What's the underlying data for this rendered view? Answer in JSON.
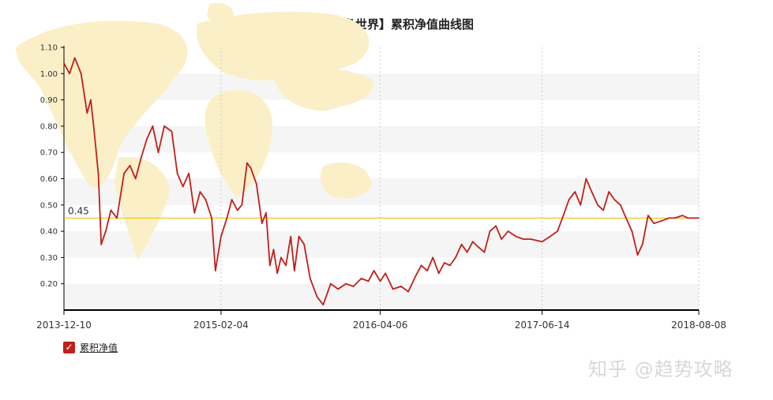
{
  "chart_data": {
    "type": "line",
    "title": "【装备中国装备世界】累积净值曲线图",
    "xlabel": "",
    "ylabel": "",
    "x_ticks": [
      "2013-12-10",
      "2015-02-04",
      "2016-04-06",
      "2017-06-14",
      "2018-08-08"
    ],
    "y_ticks": [
      "0.20",
      "0.30",
      "0.40",
      "0.50",
      "0.60",
      "0.70",
      "0.80",
      "0.90",
      "1.00",
      "1.10"
    ],
    "ylim": [
      0.1,
      1.1
    ],
    "reference_line": {
      "value": 0.45,
      "label": "0.45",
      "color": "#e8c60a"
    },
    "grid": "vertical dotted lines at x ticks, alternating horizontal bands",
    "legend_position": "bottom-left",
    "series": [
      {
        "name": "累积净值",
        "color": "#c0201b",
        "points": [
          [
            "2013-12-10",
            1.04
          ],
          [
            "2013-12-25",
            1.0
          ],
          [
            "2014-01-08",
            1.06
          ],
          [
            "2014-01-25",
            1.0
          ],
          [
            "2014-02-10",
            0.85
          ],
          [
            "2014-02-20",
            0.9
          ],
          [
            "2014-03-01",
            0.78
          ],
          [
            "2014-03-12",
            0.62
          ],
          [
            "2014-03-20",
            0.35
          ],
          [
            "2014-04-01",
            0.4
          ],
          [
            "2014-04-15",
            0.48
          ],
          [
            "2014-05-01",
            0.45
          ],
          [
            "2014-05-20",
            0.62
          ],
          [
            "2014-06-05",
            0.65
          ],
          [
            "2014-06-20",
            0.6
          ],
          [
            "2014-07-05",
            0.68
          ],
          [
            "2014-07-20",
            0.75
          ],
          [
            "2014-08-05",
            0.8
          ],
          [
            "2014-08-20",
            0.7
          ],
          [
            "2014-09-05",
            0.8
          ],
          [
            "2014-09-25",
            0.78
          ],
          [
            "2014-10-10",
            0.62
          ],
          [
            "2014-10-25",
            0.57
          ],
          [
            "2014-11-10",
            0.62
          ],
          [
            "2014-11-25",
            0.47
          ],
          [
            "2014-12-10",
            0.55
          ],
          [
            "2014-12-25",
            0.52
          ],
          [
            "2015-01-10",
            0.45
          ],
          [
            "2015-01-20",
            0.25
          ],
          [
            "2015-02-04",
            0.38
          ],
          [
            "2015-02-20",
            0.45
          ],
          [
            "2015-03-05",
            0.52
          ],
          [
            "2015-03-20",
            0.48
          ],
          [
            "2015-04-01",
            0.5
          ],
          [
            "2015-04-15",
            0.66
          ],
          [
            "2015-04-25",
            0.64
          ],
          [
            "2015-05-10",
            0.58
          ],
          [
            "2015-05-25",
            0.43
          ],
          [
            "2015-06-05",
            0.47
          ],
          [
            "2015-06-15",
            0.27
          ],
          [
            "2015-06-25",
            0.33
          ],
          [
            "2015-07-05",
            0.24
          ],
          [
            "2015-07-15",
            0.3
          ],
          [
            "2015-07-28",
            0.27
          ],
          [
            "2015-08-10",
            0.38
          ],
          [
            "2015-08-20",
            0.25
          ],
          [
            "2015-09-01",
            0.38
          ],
          [
            "2015-09-15",
            0.35
          ],
          [
            "2015-10-01",
            0.22
          ],
          [
            "2015-10-20",
            0.15
          ],
          [
            "2015-11-05",
            0.12
          ],
          [
            "2015-11-25",
            0.2
          ],
          [
            "2015-12-15",
            0.18
          ],
          [
            "2016-01-05",
            0.2
          ],
          [
            "2016-01-25",
            0.19
          ],
          [
            "2016-02-15",
            0.22
          ],
          [
            "2016-03-05",
            0.21
          ],
          [
            "2016-03-20",
            0.25
          ],
          [
            "2016-04-06",
            0.21
          ],
          [
            "2016-04-20",
            0.24
          ],
          [
            "2016-05-10",
            0.18
          ],
          [
            "2016-06-01",
            0.19
          ],
          [
            "2016-06-20",
            0.17
          ],
          [
            "2016-07-10",
            0.23
          ],
          [
            "2016-07-25",
            0.27
          ],
          [
            "2016-08-10",
            0.25
          ],
          [
            "2016-08-25",
            0.3
          ],
          [
            "2016-09-10",
            0.24
          ],
          [
            "2016-09-25",
            0.28
          ],
          [
            "2016-10-10",
            0.27
          ],
          [
            "2016-10-25",
            0.3
          ],
          [
            "2016-11-10",
            0.35
          ],
          [
            "2016-11-25",
            0.32
          ],
          [
            "2016-12-10",
            0.36
          ],
          [
            "2016-12-25",
            0.34
          ],
          [
            "2017-01-10",
            0.32
          ],
          [
            "2017-01-25",
            0.4
          ],
          [
            "2017-02-10",
            0.42
          ],
          [
            "2017-02-25",
            0.37
          ],
          [
            "2017-03-15",
            0.4
          ],
          [
            "2017-04-05",
            0.38
          ],
          [
            "2017-04-25",
            0.37
          ],
          [
            "2017-05-15",
            0.37
          ],
          [
            "2017-06-14",
            0.36
          ],
          [
            "2017-07-05",
            0.38
          ],
          [
            "2017-07-25",
            0.4
          ],
          [
            "2017-08-10",
            0.46
          ],
          [
            "2017-08-25",
            0.52
          ],
          [
            "2017-09-10",
            0.55
          ],
          [
            "2017-09-25",
            0.5
          ],
          [
            "2017-10-10",
            0.6
          ],
          [
            "2017-10-25",
            0.55
          ],
          [
            "2017-11-10",
            0.5
          ],
          [
            "2017-11-25",
            0.48
          ],
          [
            "2017-12-10",
            0.55
          ],
          [
            "2017-12-25",
            0.52
          ],
          [
            "2018-01-10",
            0.5
          ],
          [
            "2018-01-25",
            0.45
          ],
          [
            "2018-02-10",
            0.4
          ],
          [
            "2018-02-25",
            0.31
          ],
          [
            "2018-03-10",
            0.35
          ],
          [
            "2018-03-25",
            0.46
          ],
          [
            "2018-04-10",
            0.43
          ],
          [
            "2018-05-01",
            0.44
          ],
          [
            "2018-05-20",
            0.45
          ],
          [
            "2018-06-05",
            0.45
          ],
          [
            "2018-06-25",
            0.46
          ],
          [
            "2018-07-10",
            0.45
          ],
          [
            "2018-07-25",
            0.45
          ],
          [
            "2018-08-08",
            0.45
          ]
        ]
      }
    ]
  },
  "legend": {
    "label": "累积净值",
    "checked": true,
    "check_glyph": "✓"
  },
  "watermark": "知乎 @趋势攻略",
  "colors": {
    "band": "#f5f5f5",
    "axis": "#000000",
    "map": "#fbefc8"
  }
}
